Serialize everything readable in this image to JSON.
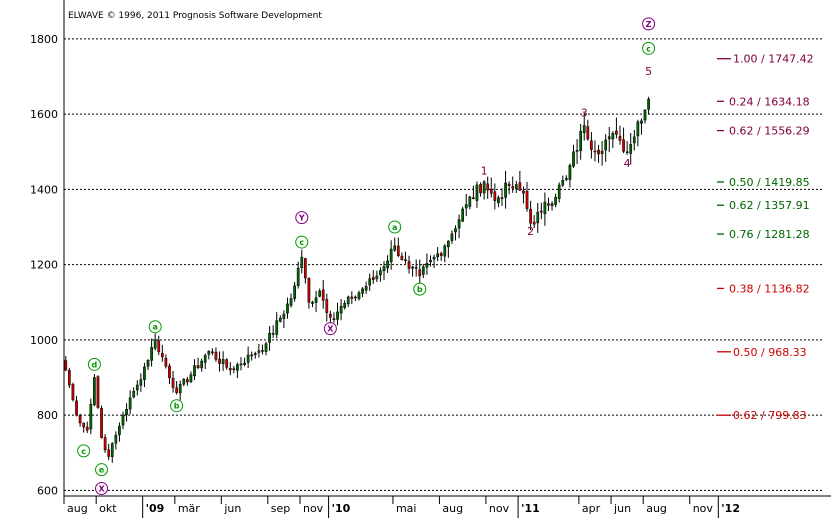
{
  "copyright": "ELWAVE © 1996, 2011 Prognosis Software Development",
  "chart_data": {
    "type": "candlestick",
    "title": "",
    "xlabel": "",
    "ylabel": "",
    "ylim": [
      585,
      1845
    ],
    "y_ticks": [
      600,
      800,
      1000,
      1200,
      1400,
      1600,
      1800
    ],
    "y_tick_labels": [
      "600",
      "800",
      "1000",
      "1200",
      "1400",
      "1600",
      "1800"
    ],
    "grid": "dotted horizontal at y ticks",
    "x_start_week": 0,
    "x_end_week": 212,
    "x_ticks": [
      {
        "label": "aug",
        "week": 0,
        "year": false
      },
      {
        "label": "okt",
        "week": 9,
        "year": false
      },
      {
        "label": "'09",
        "week": 22,
        "year": true
      },
      {
        "label": "mär",
        "week": 31,
        "year": false
      },
      {
        "label": "jun",
        "week": 44,
        "year": false
      },
      {
        "label": "sep",
        "week": 57,
        "year": false
      },
      {
        "label": "nov",
        "week": 66,
        "year": false
      },
      {
        "label": "'10",
        "week": 74,
        "year": true
      },
      {
        "label": "mai",
        "week": 92,
        "year": false
      },
      {
        "label": "aug",
        "week": 105,
        "year": false
      },
      {
        "label": "nov",
        "week": 118,
        "year": false
      },
      {
        "label": "'11",
        "week": 127,
        "year": true
      },
      {
        "label": "apr",
        "week": 144,
        "year": false
      },
      {
        "label": "jun",
        "week": 153,
        "year": false
      },
      {
        "label": "aug",
        "week": 162,
        "year": false
      },
      {
        "label": "nov",
        "week": 175,
        "year": false
      },
      {
        "label": "'12",
        "week": 183,
        "year": true
      }
    ],
    "anchors": [
      {
        "w": 0,
        "p": 920
      },
      {
        "w": 3,
        "p": 800
      },
      {
        "w": 6,
        "p": 760
      },
      {
        "w": 8,
        "p": 900
      },
      {
        "w": 10,
        "p": 740
      },
      {
        "w": 12,
        "p": 690
      },
      {
        "w": 16,
        "p": 800
      },
      {
        "w": 20,
        "p": 880
      },
      {
        "w": 25,
        "p": 1000
      },
      {
        "w": 31,
        "p": 860
      },
      {
        "w": 40,
        "p": 970
      },
      {
        "w": 46,
        "p": 920
      },
      {
        "w": 52,
        "p": 960
      },
      {
        "w": 56,
        "p": 990
      },
      {
        "w": 63,
        "p": 1110
      },
      {
        "w": 66,
        "p": 1220
      },
      {
        "w": 68,
        "p": 1100
      },
      {
        "w": 71,
        "p": 1130
      },
      {
        "w": 74,
        "p": 1060
      },
      {
        "w": 80,
        "p": 1110
      },
      {
        "w": 87,
        "p": 1170
      },
      {
        "w": 92,
        "p": 1250
      },
      {
        "w": 96,
        "p": 1190
      },
      {
        "w": 99,
        "p": 1170
      },
      {
        "w": 106,
        "p": 1250
      },
      {
        "w": 112,
        "p": 1360
      },
      {
        "w": 117,
        "p": 1420
      },
      {
        "w": 120,
        "p": 1370
      },
      {
        "w": 124,
        "p": 1410
      },
      {
        "w": 128,
        "p": 1390
      },
      {
        "w": 130,
        "p": 1310
      },
      {
        "w": 133,
        "p": 1340
      },
      {
        "w": 140,
        "p": 1430
      },
      {
        "w": 145,
        "p": 1570
      },
      {
        "w": 148,
        "p": 1500
      },
      {
        "w": 152,
        "p": 1540
      },
      {
        "w": 155,
        "p": 1530
      },
      {
        "w": 157,
        "p": 1500
      },
      {
        "w": 159,
        "p": 1540
      },
      {
        "w": 160,
        "p": 1580
      },
      {
        "w": 163,
        "p": 1640
      }
    ],
    "fib_levels": [
      {
        "label": "1.00 / 1747.42",
        "value": 1747.42,
        "color": "#800040",
        "line": "long"
      },
      {
        "label": "0.24 / 1634.18",
        "value": 1634.18,
        "color": "#800040",
        "line": "short"
      },
      {
        "label": "0.62 / 1556.29",
        "value": 1556.29,
        "color": "#800040",
        "line": "short"
      },
      {
        "label": "0.50 / 1419.85",
        "value": 1419.85,
        "color": "#006400",
        "line": "short"
      },
      {
        "label": "0.62 / 1357.91",
        "value": 1357.91,
        "color": "#006400",
        "line": "short"
      },
      {
        "label": "0.76 / 1281.28",
        "value": 1281.28,
        "color": "#006400",
        "line": "short"
      },
      {
        "label": "0.38 / 1136.82",
        "value": 1136.82,
        "color": "#cc0000",
        "line": "short"
      },
      {
        "label": "0.50 / 968.33",
        "value": 968.33,
        "color": "#cc0000",
        "line": "long"
      },
      {
        "label": "0.62 / 799.83",
        "value": 799.83,
        "color": "#cc0000",
        "line": "long"
      }
    ],
    "wave_labels": [
      {
        "text": "d",
        "w": 8,
        "price": 935,
        "circled": true,
        "color": "#009900"
      },
      {
        "text": "c",
        "w": 5,
        "price": 705,
        "circled": true,
        "color": "#009900"
      },
      {
        "text": "e",
        "w": 10,
        "price": 655,
        "circled": true,
        "color": "#009900"
      },
      {
        "text": "X",
        "w": 10,
        "price": 605,
        "circled": true,
        "color": "#800080"
      },
      {
        "text": "a",
        "w": 25,
        "price": 1035,
        "circled": true,
        "color": "#009900"
      },
      {
        "text": "b",
        "w": 31,
        "price": 825,
        "circled": true,
        "color": "#009900"
      },
      {
        "text": "c",
        "w": 66,
        "price": 1260,
        "circled": true,
        "color": "#009900"
      },
      {
        "text": "Y",
        "w": 66,
        "price": 1325,
        "circled": true,
        "color": "#800080"
      },
      {
        "text": "X",
        "w": 74,
        "price": 1030,
        "circled": true,
        "color": "#800080"
      },
      {
        "text": "a",
        "w": 92,
        "price": 1300,
        "circled": true,
        "color": "#009900"
      },
      {
        "text": "b",
        "w": 99,
        "price": 1135,
        "circled": true,
        "color": "#009900"
      },
      {
        "text": "1",
        "w": 117,
        "price": 1450,
        "circled": false,
        "color": "#800040"
      },
      {
        "text": "2",
        "w": 130,
        "price": 1290,
        "circled": false,
        "color": "#800040"
      },
      {
        "text": "3",
        "w": 145,
        "price": 1605,
        "circled": false,
        "color": "#800040"
      },
      {
        "text": "4",
        "w": 157,
        "price": 1470,
        "circled": false,
        "color": "#800040"
      },
      {
        "text": "5",
        "w": 163,
        "price": 1715,
        "circled": false,
        "color": "#800040"
      },
      {
        "text": "c",
        "w": 163,
        "price": 1775,
        "circled": true,
        "color": "#009900"
      },
      {
        "text": "Z",
        "w": 163,
        "price": 1840,
        "circled": true,
        "color": "#800080"
      }
    ],
    "colors": {
      "up_candle": "#006400",
      "down_candle": "#cc0000",
      "wick": "#000000",
      "grid": "#000000"
    }
  }
}
